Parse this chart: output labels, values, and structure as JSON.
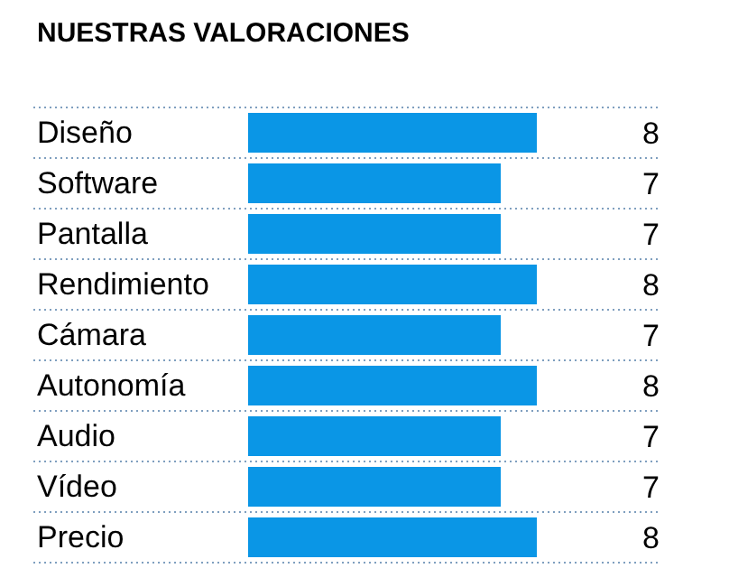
{
  "chart_data": {
    "type": "bar",
    "orientation": "horizontal",
    "title": "NUESTRAS VALORACIONES",
    "categories": [
      "Diseño",
      "Software",
      "Pantalla",
      "Rendimiento",
      "Cámara",
      "Autonomía",
      "Audio",
      "Vídeo",
      "Precio"
    ],
    "values": [
      8,
      7,
      7,
      8,
      7,
      8,
      7,
      7,
      8
    ],
    "color": "#0a96e6",
    "data_labels": true,
    "grid": "y"
  }
}
